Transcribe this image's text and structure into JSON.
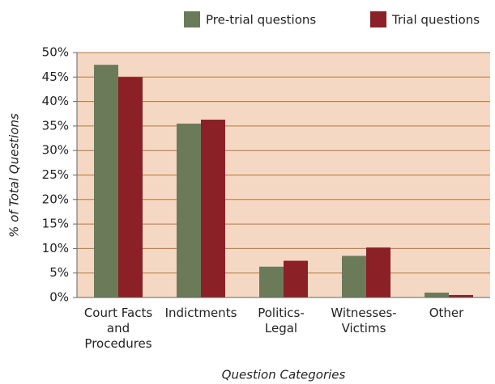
{
  "chart_data": {
    "type": "bar",
    "categories": [
      "Court Facts and Procedures",
      "Indictments",
      "Politics-Legal",
      "Witnesses-Victims",
      "Other"
    ],
    "series": [
      {
        "name": "Pre-trial questions",
        "color": "#6b7b5a",
        "values": [
          47.5,
          35.5,
          6.3,
          8.5,
          1.0
        ]
      },
      {
        "name": "Trial questions",
        "color": "#8b2027",
        "values": [
          45,
          36.3,
          7.5,
          10.2,
          0.5
        ]
      }
    ],
    "ylim": [
      0,
      50
    ],
    "yticks": [
      {
        "value": 0,
        "label": "0%"
      },
      {
        "value": 5,
        "label": "5%"
      },
      {
        "value": 10,
        "label": "10%"
      },
      {
        "value": 15,
        "label": "15%"
      },
      {
        "value": 20,
        "label": "20%"
      },
      {
        "value": 25,
        "label": "25%"
      },
      {
        "value": 30,
        "label": "30%"
      },
      {
        "value": 35,
        "label": "35%"
      },
      {
        "value": 40,
        "label": "40%"
      },
      {
        "value": 45,
        "label": "45%"
      },
      {
        "value": 50,
        "label": "50%"
      }
    ],
    "xlabel": "Question Categories",
    "ylabel": "% of Total Questions",
    "grid": true,
    "legend": "top"
  }
}
